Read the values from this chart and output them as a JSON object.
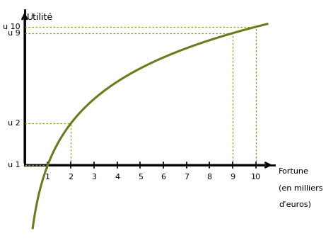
{
  "xlabel_line1": "Fortune",
  "xlabel_line2": "(en milliers",
  "xlabel_line3": "d’euros)",
  "ylabel": "Utilité",
  "curve_color": "#6b7a1a",
  "dotted_color": "#8a9a20",
  "bg_color": "#ffffff",
  "x_ticks": [
    1,
    2,
    3,
    4,
    5,
    6,
    7,
    8,
    9,
    10
  ],
  "xlim": [
    -0.5,
    11.5
  ],
  "ylim": [
    -0.55,
    1.18
  ],
  "curve_x_start": 0.35,
  "curve_x_end": 10.5,
  "u_points": [
    1,
    2,
    9,
    10
  ],
  "u_labels": [
    "u 1",
    "u 2",
    "u 9",
    "u 10"
  ]
}
